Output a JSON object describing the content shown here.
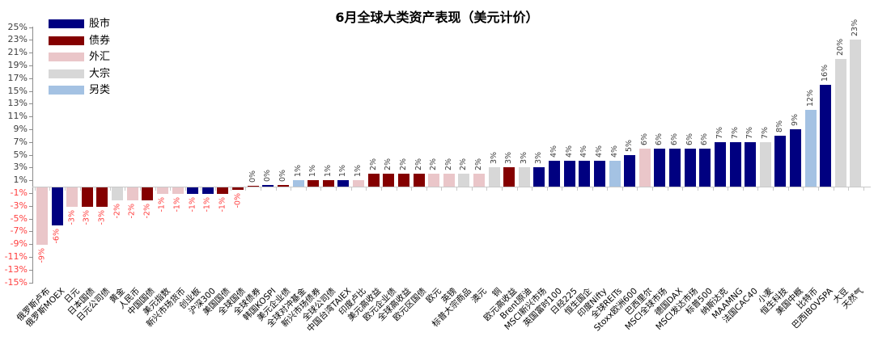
{
  "chart_data": {
    "type": "bar",
    "title": "6月全球大类资产表现（美元计价）",
    "xlabel": "",
    "ylabel": "",
    "ylim": [
      -15,
      25
    ],
    "ytick_step": 2,
    "ytick_suffix": "%",
    "grid": false,
    "legend_position": "top-left",
    "category_label_rotation": 45,
    "value_label_rotation": 90,
    "legend": [
      {
        "key": "stock",
        "label": "股市",
        "color": "#000080"
      },
      {
        "key": "bond",
        "label": "债券",
        "color": "#840000"
      },
      {
        "key": "fx",
        "label": "外汇",
        "color": "#EAC6C9"
      },
      {
        "key": "commodity",
        "label": "大宗",
        "color": "#D7D7D7"
      },
      {
        "key": "alt",
        "label": "另类",
        "color": "#A4C2E3"
      }
    ],
    "colors": {
      "positive_label": "#3F3F3F",
      "negative_label": "#FF4040",
      "axis_positive": "#3F3F3F",
      "axis_negative": "#FF4040",
      "axis_line": "#8C8C8C",
      "baseline": "#C9C9C9"
    },
    "bars": [
      {
        "label": "俄罗斯卢布",
        "group": "fx",
        "value": -9,
        "display": "-9%"
      },
      {
        "label": "俄罗斯MOEX",
        "group": "stock",
        "value": -6,
        "display": "-6%"
      },
      {
        "label": "日元",
        "group": "fx",
        "value": -3,
        "display": "-3%"
      },
      {
        "label": "日本国债",
        "group": "bond",
        "value": -3,
        "display": "-3%"
      },
      {
        "label": "日元公司债",
        "group": "bond",
        "value": -3,
        "display": "-3%"
      },
      {
        "label": "黄金",
        "group": "commodity",
        "value": -2,
        "display": "-2%"
      },
      {
        "label": "人民币",
        "group": "fx",
        "value": -2,
        "display": "-2%"
      },
      {
        "label": "中国国债",
        "group": "bond",
        "value": -2,
        "display": "-2%"
      },
      {
        "label": "美元指数",
        "group": "fx",
        "value": -1,
        "display": "-1%"
      },
      {
        "label": "新兴市场货币",
        "group": "fx",
        "value": -1,
        "display": "-1%"
      },
      {
        "label": "创业板",
        "group": "stock",
        "value": -1,
        "display": "-1%"
      },
      {
        "label": "沪深300",
        "group": "stock",
        "value": -1,
        "display": "-1%"
      },
      {
        "label": "美国国债",
        "group": "bond",
        "value": -1,
        "display": "-1%"
      },
      {
        "label": "全球国债",
        "group": "bond",
        "value": -0.4,
        "display": "-0%"
      },
      {
        "label": "全球债券",
        "group": "bond",
        "value": 0.1,
        "display": "0%"
      },
      {
        "label": "韩国KOSPI",
        "group": "stock",
        "value": 0.3,
        "display": "0%"
      },
      {
        "label": "美元企业债",
        "group": "bond",
        "value": 0.3,
        "display": "0%"
      },
      {
        "label": "全球对冲基金",
        "group": "alt",
        "value": 1,
        "display": "1%"
      },
      {
        "label": "新兴市场债券",
        "group": "bond",
        "value": 1,
        "display": "1%"
      },
      {
        "label": "全球公司债",
        "group": "bond",
        "value": 1,
        "display": "1%"
      },
      {
        "label": "中国台湾TAIEX",
        "group": "stock",
        "value": 1,
        "display": "1%"
      },
      {
        "label": "印度卢比",
        "group": "fx",
        "value": 1,
        "display": "1%"
      },
      {
        "label": "美元高收益",
        "group": "bond",
        "value": 2,
        "display": "2%"
      },
      {
        "label": "欧元企业债",
        "group": "bond",
        "value": 2,
        "display": "2%"
      },
      {
        "label": "全球高收益",
        "group": "bond",
        "value": 2,
        "display": "2%"
      },
      {
        "label": "欧元区国债",
        "group": "bond",
        "value": 2,
        "display": "2%"
      },
      {
        "label": "欧元",
        "group": "fx",
        "value": 2,
        "display": "2%"
      },
      {
        "label": "英镑",
        "group": "fx",
        "value": 2,
        "display": "2%"
      },
      {
        "label": "标普大宗商品",
        "group": "commodity",
        "value": 2,
        "display": "2%"
      },
      {
        "label": "澳元",
        "group": "fx",
        "value": 2,
        "display": "2%"
      },
      {
        "label": "铜",
        "group": "commodity",
        "value": 3,
        "display": "3%"
      },
      {
        "label": "欧元高收益",
        "group": "bond",
        "value": 3,
        "display": "3%"
      },
      {
        "label": "Brent原油",
        "group": "commodity",
        "value": 3,
        "display": "3%"
      },
      {
        "label": "MSCI新兴市场",
        "group": "stock",
        "value": 3,
        "display": "3%"
      },
      {
        "label": "英国富时100",
        "group": "stock",
        "value": 4,
        "display": "4%"
      },
      {
        "label": "日经225",
        "group": "stock",
        "value": 4,
        "display": "4%"
      },
      {
        "label": "恒生国企",
        "group": "stock",
        "value": 4,
        "display": "4%"
      },
      {
        "label": "印度Nifty",
        "group": "stock",
        "value": 4,
        "display": "4%"
      },
      {
        "label": "全球REITs",
        "group": "alt",
        "value": 4,
        "display": "4%"
      },
      {
        "label": "Stoxx欧洲600",
        "group": "stock",
        "value": 5,
        "display": "5%"
      },
      {
        "label": "巴西里尔",
        "group": "fx",
        "value": 6,
        "display": "6%"
      },
      {
        "label": "MSCI全球市场",
        "group": "stock",
        "value": 6,
        "display": "6%"
      },
      {
        "label": "德国DAX",
        "group": "stock",
        "value": 6,
        "display": "6%"
      },
      {
        "label": "MSCI发达市场",
        "group": "stock",
        "value": 6,
        "display": "6%"
      },
      {
        "label": "标普500",
        "group": "stock",
        "value": 6,
        "display": "6%"
      },
      {
        "label": "纳斯达克",
        "group": "stock",
        "value": 7,
        "display": "7%"
      },
      {
        "label": "MAAMNG",
        "group": "stock",
        "value": 7,
        "display": "7%"
      },
      {
        "label": "法国CAC40",
        "group": "stock",
        "value": 7,
        "display": "7%"
      },
      {
        "label": "小麦",
        "group": "commodity",
        "value": 7,
        "display": "7%"
      },
      {
        "label": "恒生科技",
        "group": "stock",
        "value": 8,
        "display": "8%"
      },
      {
        "label": "美国中概",
        "group": "stock",
        "value": 9,
        "display": "9%"
      },
      {
        "label": "比特币",
        "group": "alt",
        "value": 12,
        "display": "12%"
      },
      {
        "label": "巴西IBOVSPA",
        "group": "stock",
        "value": 16,
        "display": "16%"
      },
      {
        "label": "大豆",
        "group": "commodity",
        "value": 20,
        "display": "20%"
      },
      {
        "label": "天然气",
        "group": "commodity",
        "value": 23,
        "display": "23%"
      }
    ]
  }
}
